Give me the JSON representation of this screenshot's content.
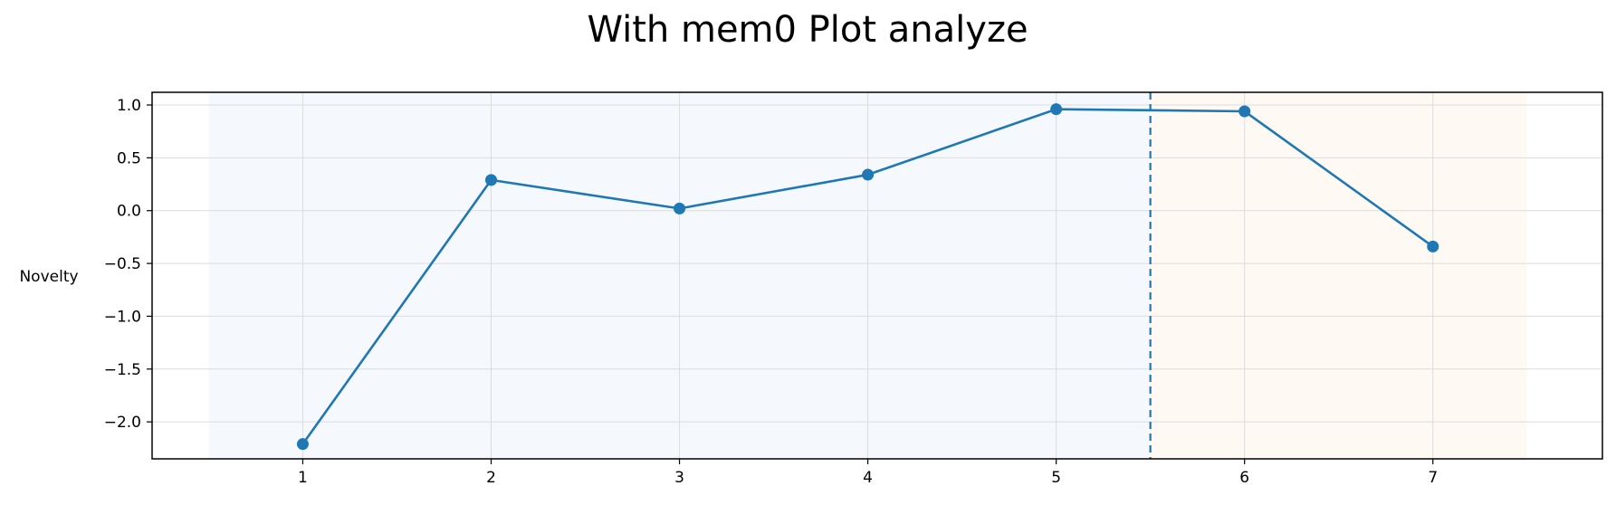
{
  "chart_data": {
    "type": "line",
    "title": "With mem0 Plot analyze",
    "xlabel": "",
    "ylabel": "Novelty",
    "x": [
      1,
      2,
      3,
      4,
      5,
      6,
      7
    ],
    "x_tick_labels": [
      "1",
      "2",
      "3",
      "4",
      "5",
      "6",
      "7"
    ],
    "y_ticks": [
      1.0,
      0.5,
      0.0,
      -0.5,
      -1.0,
      -1.5,
      -2.0
    ],
    "y_tick_labels": [
      "1.0",
      "0.5",
      "0.0",
      "−0.5",
      "−1.0",
      "−1.5",
      "−2.0"
    ],
    "xlim": [
      0.2,
      7.9
    ],
    "ylim": [
      -2.35,
      1.12
    ],
    "series": [
      {
        "values": [
          -2.21,
          0.29,
          0.02,
          0.34,
          0.96,
          0.94,
          -0.34
        ],
        "color": "#1f77b4"
      }
    ],
    "regions": [
      {
        "x_start": 0.5,
        "x_end": 5.5,
        "color": "#f5f9fd"
      },
      {
        "x_start": 5.5,
        "x_end": 7.5,
        "color": "#fef9f3"
      }
    ],
    "vline": {
      "x": 5.5,
      "style": "dashed",
      "color": "#1f77b4"
    },
    "grid": true,
    "legend": "none"
  }
}
